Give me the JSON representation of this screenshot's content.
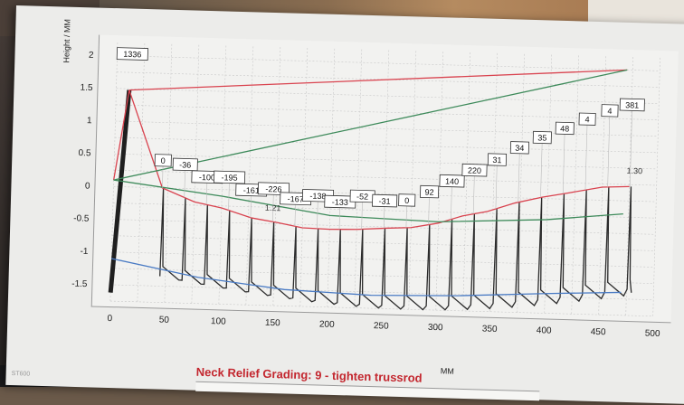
{
  "chart_data": {
    "type": "line",
    "title": "",
    "xlabel": "MM",
    "ylabel": "Height / MM",
    "xlim": [
      0,
      500
    ],
    "ylim": [
      -1.75,
      2.2
    ],
    "x_ticks": [
      0,
      50,
      100,
      150,
      200,
      250,
      300,
      350,
      400,
      450,
      500
    ],
    "y_ticks": [
      -1.5,
      -1,
      -0.5,
      0,
      0.5,
      1,
      1.5,
      2
    ],
    "grid": true,
    "series": [
      {
        "color": "#d9434f",
        "x": [
          0,
          12,
          45,
          75,
          100,
          128,
          152,
          175,
          200,
          225,
          252,
          275,
          300,
          322,
          345,
          370,
          395,
          420,
          450,
          475
        ],
        "y": [
          0.1,
          1.48,
          0.0,
          -0.2,
          -0.28,
          -0.42,
          -0.48,
          -0.55,
          -0.56,
          -0.55,
          -0.52,
          -0.5,
          -0.42,
          -0.3,
          -0.22,
          -0.08,
          0.02,
          0.1,
          0.2,
          0.22
        ]
      },
      {
        "color": "#d9434f",
        "x": [
          12,
          470
        ],
        "y": [
          1.48,
          2.0
        ]
      },
      {
        "color": "#3d8a5a",
        "x": [
          0,
          470
        ],
        "y": [
          0.1,
          2.0
        ]
      },
      {
        "color": "#3d8a5a",
        "x": [
          0,
          100,
          200,
          300,
          400,
          470
        ],
        "y": [
          0.1,
          -0.1,
          -0.35,
          -0.4,
          -0.32,
          -0.2
        ]
      },
      {
        "color": "#4a7bc4",
        "x": [
          0,
          80,
          160,
          240,
          320,
          400,
          470
        ],
        "y": [
          -1.1,
          -1.35,
          -1.5,
          -1.55,
          -1.52,
          -1.45,
          -1.4
        ]
      }
    ],
    "fret_slope_values": [
      0,
      -36,
      -100,
      -195,
      -161,
      -226,
      -167,
      -138,
      -133,
      -52,
      -31,
      0,
      92,
      140,
      220,
      31,
      34,
      35,
      48,
      4,
      4,
      381
    ],
    "annotations": [
      "1336",
      "1.21",
      "1.30"
    ]
  },
  "footer": {
    "grading": "Neck Relief Grading: 9 - tighten trussrod",
    "corner_id": "ST600"
  }
}
